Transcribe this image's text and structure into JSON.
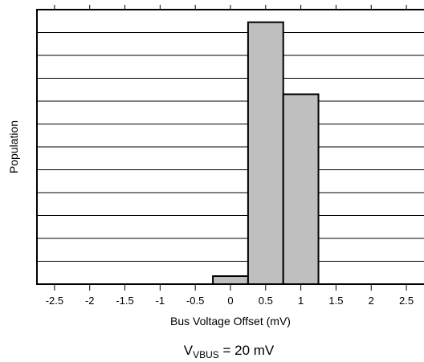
{
  "chart_data": {
    "type": "bar",
    "title": "",
    "xlabel": "Bus Voltage Offset (mV)",
    "ylabel": "Population",
    "caption": {
      "prefix": "V",
      "subscript": "VBUS",
      "suffix": " = 20 mV"
    },
    "x_ticks": [
      "-2.5",
      "-2",
      "-1.5",
      "-1",
      "-0.5",
      "0",
      "0.5",
      "1",
      "1.5",
      "2",
      "2.5"
    ],
    "xlim": [
      -2.75,
      2.75
    ],
    "ylim": [
      0,
      12
    ],
    "y_gridlines": 12,
    "grid": true,
    "bar_color": "#bfbfbf",
    "bins": [
      {
        "from": -0.25,
        "to": 0.25,
        "value": 0.35
      },
      {
        "from": 0.25,
        "to": 0.75,
        "value": 11.45
      },
      {
        "from": 0.75,
        "to": 1.25,
        "value": 8.3
      }
    ]
  }
}
